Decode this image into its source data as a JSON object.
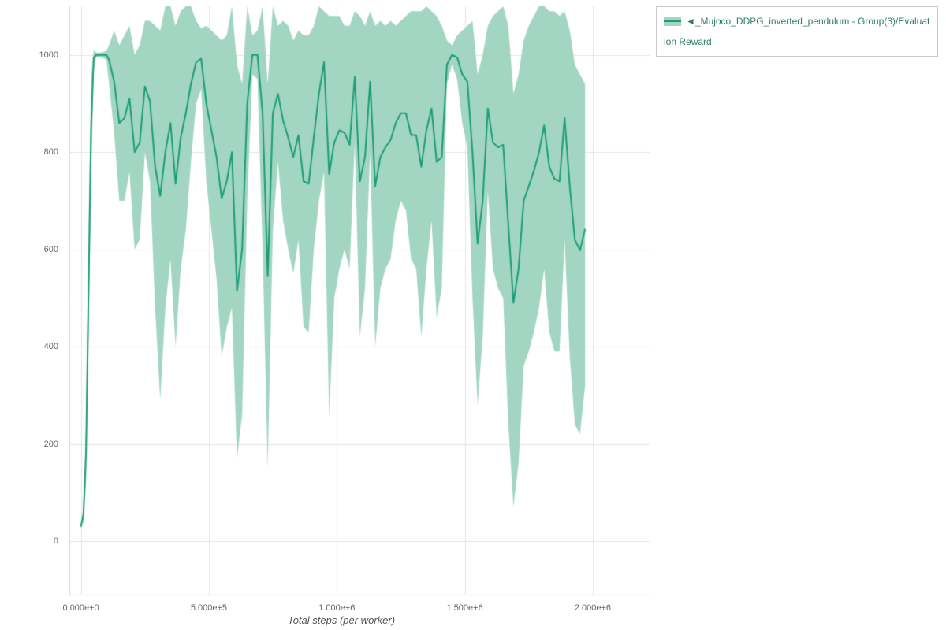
{
  "legend": {
    "label": "◄_Mujoco_DDPG_inverted_pendulum - Group(3)/Evaluation Reward"
  },
  "chart_data": {
    "type": "line",
    "title": "",
    "xlabel": "Total steps (per worker)",
    "ylabel": "",
    "xlim": [
      -45000,
      2225000
    ],
    "ylim": [
      -110,
      1100
    ],
    "grid": true,
    "legend_position": "top-right-outside",
    "x_ticks": [
      {
        "value": 0,
        "label": "0.000e+0"
      },
      {
        "value": 500000,
        "label": "5.000e+5"
      },
      {
        "value": 1000000,
        "label": "1.000e+6"
      },
      {
        "value": 1500000,
        "label": "1.500e+6"
      },
      {
        "value": 2000000,
        "label": "2.000e+6"
      }
    ],
    "y_ticks": [
      {
        "value": 0,
        "label": "0"
      },
      {
        "value": 200,
        "label": "200"
      },
      {
        "value": 400,
        "label": "400"
      },
      {
        "value": 600,
        "label": "600"
      },
      {
        "value": 800,
        "label": "800"
      },
      {
        "value": 1000,
        "label": "1000"
      }
    ],
    "colors": {
      "line": "#1b9e77",
      "band_fill": "#a2d5c2",
      "grid": "#e4e4e4",
      "axis": "#d9d9d9",
      "tick_text": "#666666",
      "legend_text": "#2f8067",
      "legend_border": "#c9c9c9"
    },
    "series": [
      {
        "name": "◄_Mujoco_DDPG_inverted_pendulum - Group(3)/Evaluation Reward",
        "x": [
          0,
          10000,
          20000,
          30000,
          40000,
          50000,
          60000,
          80000,
          100000,
          110000,
          130000,
          150000,
          170000,
          190000,
          210000,
          230000,
          250000,
          270000,
          290000,
          310000,
          330000,
          350000,
          370000,
          390000,
          410000,
          430000,
          450000,
          470000,
          490000,
          510000,
          530000,
          550000,
          570000,
          590000,
          610000,
          630000,
          650000,
          670000,
          690000,
          710000,
          730000,
          750000,
          770000,
          790000,
          810000,
          830000,
          850000,
          870000,
          890000,
          910000,
          930000,
          950000,
          970000,
          990000,
          1010000,
          1030000,
          1050000,
          1070000,
          1090000,
          1110000,
          1130000,
          1150000,
          1170000,
          1190000,
          1210000,
          1230000,
          1250000,
          1270000,
          1290000,
          1310000,
          1330000,
          1350000,
          1370000,
          1390000,
          1410000,
          1430000,
          1450000,
          1470000,
          1490000,
          1510000,
          1530000,
          1550000,
          1570000,
          1590000,
          1610000,
          1630000,
          1650000,
          1670000,
          1690000,
          1710000,
          1730000,
          1750000,
          1770000,
          1790000,
          1810000,
          1830000,
          1850000,
          1870000,
          1890000,
          1910000,
          1930000,
          1950000,
          1970000
        ],
        "mean": [
          30,
          55,
          180,
          520,
          850,
          995,
          1000,
          1000,
          1000,
          990,
          945,
          860,
          870,
          910,
          800,
          820,
          935,
          905,
          770,
          710,
          800,
          860,
          735,
          830,
          880,
          940,
          985,
          992,
          900,
          845,
          790,
          705,
          740,
          800,
          515,
          600,
          900,
          1000,
          1000,
          880,
          545,
          880,
          920,
          865,
          830,
          790,
          835,
          740,
          735,
          830,
          920,
          985,
          755,
          820,
          845,
          840,
          815,
          955,
          740,
          790,
          945,
          730,
          790,
          810,
          825,
          860,
          880,
          880,
          835,
          835,
          770,
          845,
          890,
          780,
          790,
          980,
          1000,
          995,
          960,
          945,
          800,
          612,
          700,
          890,
          820,
          810,
          815,
          650,
          490,
          560,
          700,
          730,
          762,
          800,
          855,
          770,
          745,
          740,
          870,
          730,
          620,
          598,
          642
        ],
        "lo": [
          25,
          40,
          120,
          400,
          750,
          970,
          995,
          995,
          990,
          940,
          840,
          700,
          700,
          760,
          600,
          620,
          800,
          740,
          480,
          290,
          480,
          580,
          400,
          560,
          640,
          780,
          900,
          930,
          740,
          640,
          540,
          380,
          440,
          480,
          170,
          260,
          700,
          960,
          950,
          600,
          150,
          640,
          780,
          660,
          600,
          550,
          620,
          440,
          430,
          600,
          700,
          760,
          255,
          500,
          560,
          600,
          560,
          820,
          420,
          520,
          800,
          400,
          520,
          560,
          580,
          660,
          700,
          680,
          580,
          560,
          420,
          560,
          660,
          460,
          520,
          940,
          980,
          950,
          860,
          810,
          500,
          280,
          420,
          720,
          560,
          520,
          500,
          240,
          70,
          160,
          360,
          390,
          430,
          480,
          560,
          430,
          390,
          390,
          620,
          380,
          240,
          220,
          320
        ],
        "hi": [
          35,
          70,
          240,
          640,
          950,
          1010,
          1005,
          1005,
          1008,
          1020,
          1050,
          1020,
          1040,
          1060,
          1000,
          1020,
          1070,
          1070,
          1060,
          1050,
          1100,
          1100,
          1060,
          1090,
          1100,
          1100,
          1070,
          1055,
          1060,
          1050,
          1040,
          1030,
          1040,
          1100,
          980,
          940,
          1100,
          1040,
          1050,
          1100,
          940,
          1100,
          1060,
          1070,
          1060,
          1030,
          1050,
          1040,
          1040,
          1060,
          1100,
          1090,
          1080,
          1080,
          1080,
          1060,
          1060,
          1090,
          1080,
          1060,
          1090,
          1060,
          1070,
          1060,
          1070,
          1060,
          1070,
          1080,
          1090,
          1090,
          1090,
          1100,
          1090,
          1080,
          1060,
          1030,
          1020,
          1040,
          1050,
          1060,
          1070,
          960,
          1000,
          1060,
          1080,
          1090,
          1100,
          1060,
          920,
          960,
          1030,
          1060,
          1080,
          1100,
          1100,
          1090,
          1090,
          1080,
          1090,
          1050,
          980,
          960,
          940
        ]
      }
    ]
  }
}
